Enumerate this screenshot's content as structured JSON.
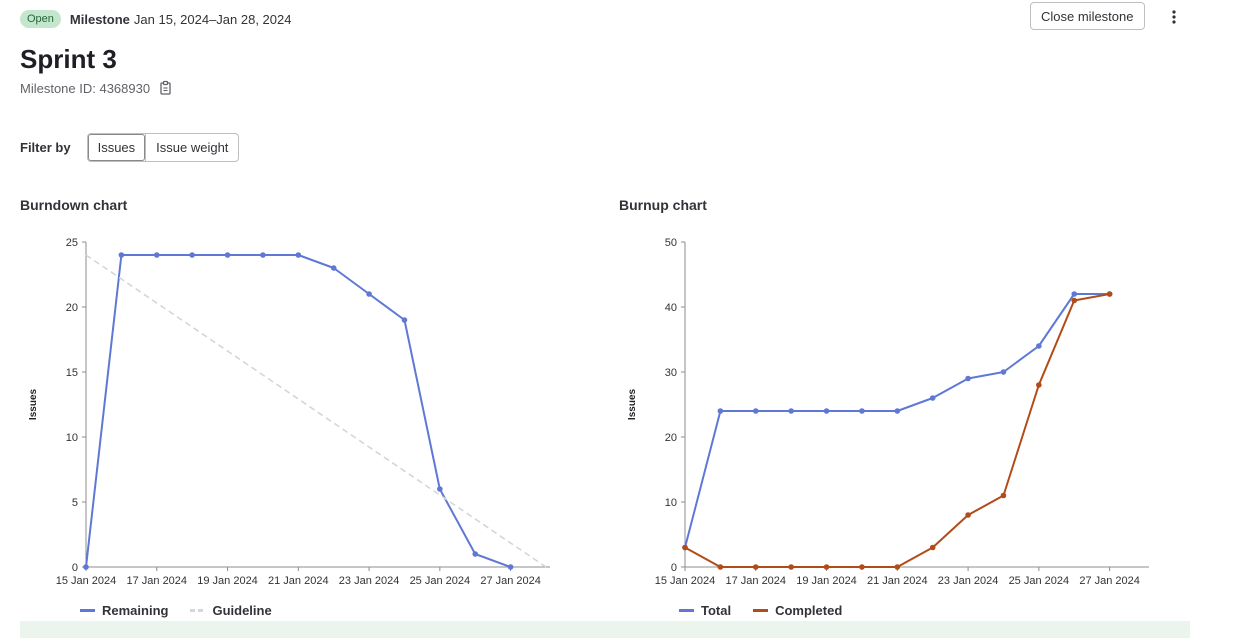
{
  "header": {
    "status_badge": "Open",
    "milestone_label": "Milestone",
    "dates": "Jan 15, 2024–Jan 28, 2024",
    "close_button": "Close milestone",
    "more_icon": "kebab-vertical-icon"
  },
  "page": {
    "title": "Sprint 3",
    "milestone_id": "Milestone ID: 4368930",
    "copy_icon": "clipboard-icon"
  },
  "filter": {
    "label": "Filter by",
    "options": [
      "Issues",
      "Issue weight"
    ],
    "selected": "Issues"
  },
  "colors": {
    "blue": "#5f78d6",
    "orange": "#b14c18",
    "guideline": "#d6d6d8",
    "badge_bg": "#c3e6cd",
    "badge_text": "#24663b"
  },
  "burndown": {
    "title": "Burndown chart",
    "legend": [
      "Remaining",
      "Guideline"
    ]
  },
  "burnup": {
    "title": "Burnup chart",
    "legend": [
      "Total",
      "Completed"
    ]
  },
  "chart_data": [
    {
      "type": "line",
      "title": "Burndown chart",
      "ylabel": "Issues",
      "xlabel": "",
      "x_start": "15 Jan 2024",
      "x_end": "28 Jan 2024",
      "ylim": [
        0,
        25
      ],
      "yticks": [
        0,
        5,
        10,
        15,
        20,
        25
      ],
      "xticks": [
        "15 Jan 2024",
        "17 Jan 2024",
        "19 Jan 2024",
        "21 Jan 2024",
        "23 Jan 2024",
        "25 Jan 2024",
        "27 Jan 2024"
      ],
      "series": [
        {
          "name": "Remaining",
          "x": [
            "15 Jan 2024",
            "16 Jan 2024",
            "17 Jan 2024",
            "18 Jan 2024",
            "19 Jan 2024",
            "20 Jan 2024",
            "21 Jan 2024",
            "22 Jan 2024",
            "23 Jan 2024",
            "24 Jan 2024",
            "25 Jan 2024",
            "26 Jan 2024",
            "27 Jan 2024"
          ],
          "values": [
            0,
            24,
            24,
            24,
            24,
            24,
            24,
            23,
            21,
            19,
            6,
            1,
            0
          ]
        },
        {
          "name": "Guideline",
          "x": [
            "15 Jan 2024",
            "28 Jan 2024"
          ],
          "values": [
            24,
            0
          ]
        }
      ],
      "legend_position": "bottom-left",
      "grid": false
    },
    {
      "type": "line",
      "title": "Burnup chart",
      "ylabel": "Issues",
      "xlabel": "",
      "x_start": "15 Jan 2024",
      "x_end": "28 Jan 2024",
      "ylim": [
        0,
        50
      ],
      "yticks": [
        0,
        10,
        20,
        30,
        40,
        50
      ],
      "xticks": [
        "15 Jan 2024",
        "17 Jan 2024",
        "19 Jan 2024",
        "21 Jan 2024",
        "23 Jan 2024",
        "25 Jan 2024",
        "27 Jan 2024"
      ],
      "series": [
        {
          "name": "Total",
          "x": [
            "15 Jan 2024",
            "16 Jan 2024",
            "17 Jan 2024",
            "18 Jan 2024",
            "19 Jan 2024",
            "20 Jan 2024",
            "21 Jan 2024",
            "22 Jan 2024",
            "23 Jan 2024",
            "24 Jan 2024",
            "25 Jan 2024",
            "26 Jan 2024",
            "27 Jan 2024"
          ],
          "values": [
            3,
            24,
            24,
            24,
            24,
            24,
            24,
            26,
            29,
            30,
            34,
            42,
            42
          ]
        },
        {
          "name": "Completed",
          "x": [
            "15 Jan 2024",
            "16 Jan 2024",
            "17 Jan 2024",
            "18 Jan 2024",
            "19 Jan 2024",
            "20 Jan 2024",
            "21 Jan 2024",
            "22 Jan 2024",
            "23 Jan 2024",
            "24 Jan 2024",
            "25 Jan 2024",
            "26 Jan 2024",
            "27 Jan 2024"
          ],
          "values": [
            3,
            0,
            0,
            0,
            0,
            0,
            0,
            3,
            8,
            11,
            28,
            41,
            42
          ]
        }
      ],
      "legend_position": "bottom-left",
      "grid": false
    }
  ]
}
